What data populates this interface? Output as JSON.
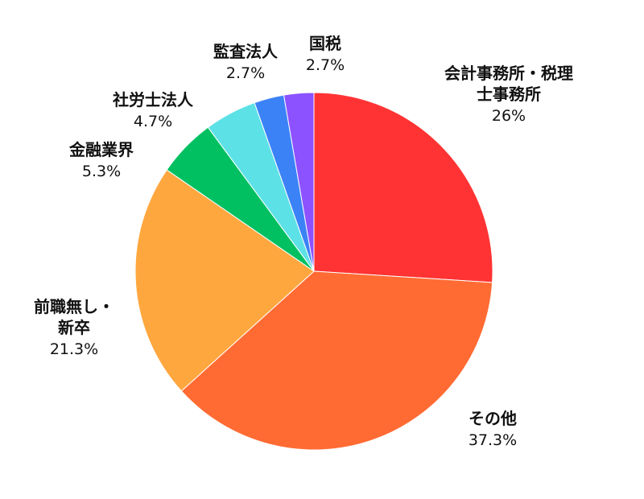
{
  "chart_data": {
    "type": "pie",
    "categories": [
      "会計事務所・税理士事務所",
      "その他",
      "前職無し・\n新卒",
      "金融業界",
      "社労士法人",
      "監査法人",
      "国税"
    ],
    "values": [
      26,
      37.3,
      21.3,
      5.3,
      4.7,
      2.7,
      2.7
    ],
    "value_labels": [
      "26%",
      "37.3%",
      "21.3%",
      "5.3%",
      "4.7%",
      "2.7%",
      "2.7%"
    ],
    "colors": [
      "#ff3333",
      "#ff6b33",
      "#ffa73f",
      "#00c062",
      "#5ce1e6",
      "#3b82f6",
      "#8c52ff"
    ]
  }
}
